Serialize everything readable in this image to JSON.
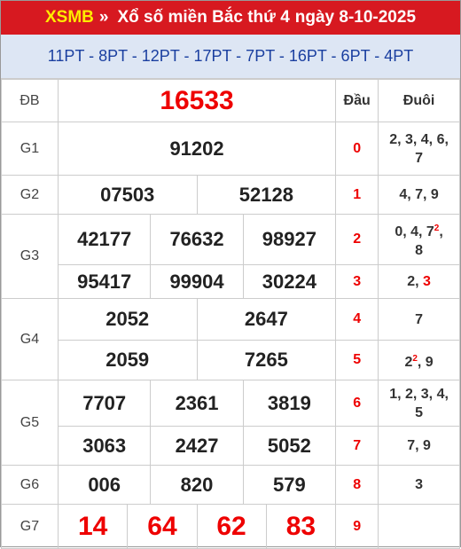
{
  "header": {
    "brand": "XSMB",
    "sep": "»",
    "title": "Xổ số miền Bắc thứ 4",
    "date": "ngày 8-10-2025"
  },
  "pt_line": "11PT - 8PT - 12PT - 17PT - 7PT - 16PT - 6PT - 4PT",
  "cols": {
    "dau": "Đầu",
    "duoi": "Đuôi"
  },
  "labels": {
    "db": "ĐB",
    "g1": "G1",
    "g2": "G2",
    "g3": "G3",
    "g4": "G4",
    "g5": "G5",
    "g6": "G6",
    "g7": "G7"
  },
  "prizes": {
    "db": "16533",
    "g1": "91202",
    "g2": [
      "07503",
      "52128"
    ],
    "g3": [
      "42177",
      "76632",
      "98927",
      "95417",
      "99904",
      "30224"
    ],
    "g4": [
      "2052",
      "2647",
      "2059",
      "7265"
    ],
    "g5": [
      "7707",
      "2361",
      "3819",
      "3063",
      "2427",
      "5052"
    ],
    "g6": [
      "006",
      "820",
      "579"
    ],
    "g7": [
      "14",
      "64",
      "62",
      "83"
    ]
  },
  "loto": {
    "dau": [
      "0",
      "1",
      "2",
      "3",
      "4",
      "5",
      "6",
      "7",
      "8",
      "9"
    ],
    "duoi": [
      {
        "a": "2, 3, 4, 6,",
        "b": "7"
      },
      {
        "a": "4, 7, 9"
      },
      {
        "a": "0, 4, 7",
        "sup": "2",
        "c": ",",
        "b": "8"
      },
      {
        "a": "2, ",
        "red": "3"
      },
      {
        "a": "7"
      },
      {
        "a": "2",
        "sup": "2",
        "c": ", 9"
      },
      {
        "a": "1, 2, 3, 4,",
        "b": "5"
      },
      {
        "a": "7, 9"
      },
      {
        "a": "3"
      },
      {
        "a": ""
      }
    ]
  },
  "colors": {
    "header_bg": "#d71920",
    "brand_yellow": "#ffeb00",
    "pt_bg": "#dde6f4",
    "pt_text": "#1a3fa0",
    "accent_red": "#ee0000"
  }
}
